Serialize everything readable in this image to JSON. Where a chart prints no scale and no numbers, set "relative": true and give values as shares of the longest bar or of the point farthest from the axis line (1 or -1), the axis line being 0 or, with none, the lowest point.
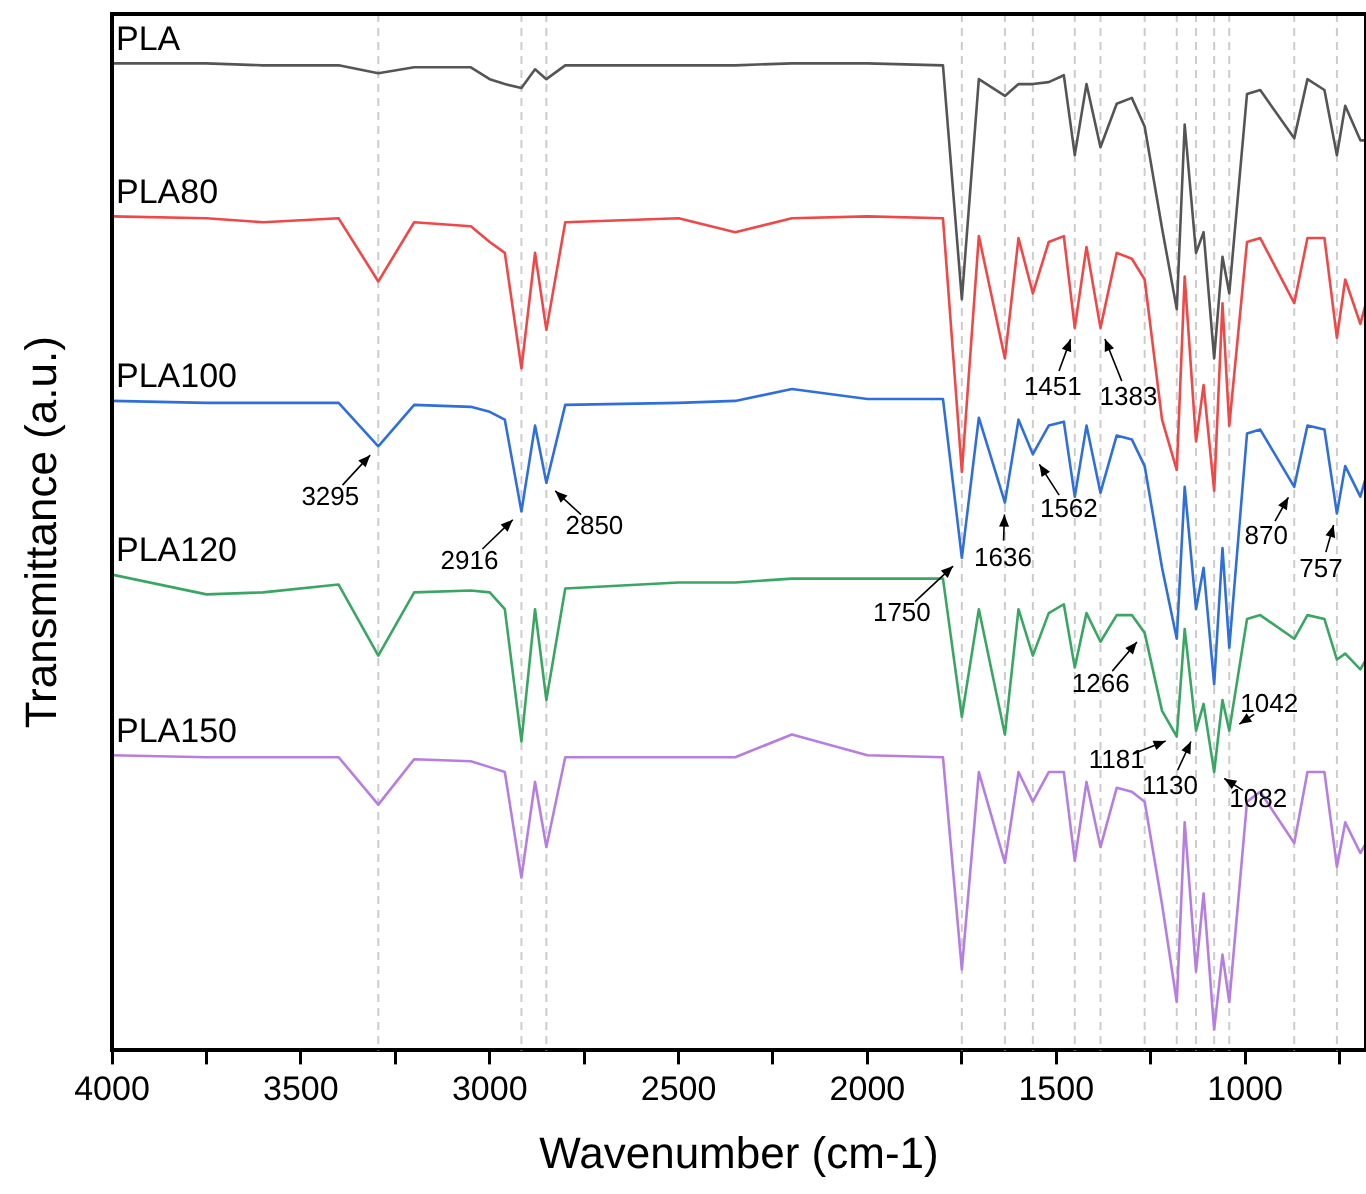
{
  "chart_data": {
    "type": "line",
    "xlabel": "Wavenumber (cm-1)",
    "ylabel": "Transmittance (a.u.)",
    "relative": true,
    "marker": "none",
    "line_style": "solid",
    "xlim": [
      4000,
      680
    ],
    "xticks": [
      4000,
      {
        "value": 3750,
        "label": null
      },
      3500,
      {
        "value": 3250,
        "label": null
      },
      3000,
      {
        "value": 2750,
        "label": null
      },
      2500,
      {
        "value": 2250,
        "label": null
      },
      2000,
      {
        "value": 1750,
        "label": null
      },
      1500,
      {
        "value": 1250,
        "label": null
      },
      1000,
      {
        "value": 750,
        "label": null
      }
    ],
    "x": [
      4000,
      3750,
      3600,
      3400,
      3295,
      3200,
      3050,
      3000,
      2960,
      2916,
      2880,
      2850,
      2800,
      2500,
      2350,
      2200,
      2000,
      1800,
      1750,
      1705,
      1636,
      1600,
      1562,
      1520,
      1480,
      1451,
      1420,
      1383,
      1340,
      1300,
      1266,
      1220,
      1181,
      1160,
      1130,
      1110,
      1082,
      1060,
      1042,
      995,
      960,
      870,
      835,
      790,
      757,
      735,
      695,
      680
    ],
    "series": [
      {
        "name": "PLA",
        "color": "#555555",
        "values": [
          1.0,
          1.0,
          0.998,
          0.998,
          0.99,
          0.996,
          0.996,
          0.984,
          0.979,
          0.975,
          0.994,
          0.984,
          0.998,
          0.998,
          0.998,
          1.0,
          1.0,
          0.998,
          0.761,
          0.984,
          0.967,
          0.979,
          0.979,
          0.981,
          0.988,
          0.907,
          0.979,
          0.915,
          0.959,
          0.965,
          0.936,
          0.833,
          0.751,
          0.938,
          0.808,
          0.829,
          0.701,
          0.804,
          0.767,
          0.969,
          0.973,
          0.924,
          0.984,
          0.973,
          0.907,
          0.957,
          0.922,
          0.922
        ]
      },
      {
        "name": "PLA80",
        "color": "#f04848",
        "values": [
          0.845,
          0.843,
          0.839,
          0.843,
          0.779,
          0.839,
          0.835,
          0.819,
          0.808,
          0.691,
          0.808,
          0.73,
          0.839,
          0.843,
          0.829,
          0.843,
          0.845,
          0.843,
          0.586,
          0.825,
          0.701,
          0.823,
          0.767,
          0.819,
          0.825,
          0.732,
          0.814,
          0.732,
          0.808,
          0.802,
          0.781,
          0.639,
          0.588,
          0.784,
          0.617,
          0.674,
          0.567,
          0.757,
          0.633,
          0.819,
          0.823,
          0.757,
          0.823,
          0.823,
          0.722,
          0.781,
          0.736,
          0.757
        ]
      },
      {
        "name": "PLA100",
        "color": "#2f6fdc",
        "values": [
          0.658,
          0.656,
          0.656,
          0.656,
          0.612,
          0.654,
          0.652,
          0.647,
          0.639,
          0.546,
          0.633,
          0.575,
          0.654,
          0.656,
          0.658,
          0.67,
          0.66,
          0.66,
          0.499,
          0.641,
          0.555,
          0.639,
          0.604,
          0.633,
          0.637,
          0.561,
          0.633,
          0.565,
          0.623,
          0.619,
          0.592,
          0.489,
          0.417,
          0.571,
          0.447,
          0.489,
          0.371,
          0.509,
          0.408,
          0.625,
          0.629,
          0.571,
          0.633,
          0.629,
          0.544,
          0.592,
          0.561,
          0.581
        ]
      },
      {
        "name": "PLA120",
        "color": "#3aa664",
        "values": [
          0.482,
          0.462,
          0.464,
          0.472,
          0.4,
          0.464,
          0.466,
          0.464,
          0.447,
          0.313,
          0.447,
          0.355,
          0.468,
          0.474,
          0.474,
          0.478,
          0.478,
          0.478,
          0.338,
          0.447,
          0.32,
          0.447,
          0.4,
          0.443,
          0.452,
          0.388,
          0.443,
          0.414,
          0.441,
          0.441,
          0.423,
          0.344,
          0.318,
          0.427,
          0.324,
          0.351,
          0.282,
          0.355,
          0.324,
          0.437,
          0.441,
          0.417,
          0.441,
          0.437,
          0.396,
          0.402,
          0.386,
          0.396
        ]
      },
      {
        "name": "PLA150",
        "color": "#b67ee0",
        "values": [
          0.299,
          0.297,
          0.297,
          0.297,
          0.249,
          0.295,
          0.293,
          0.287,
          0.282,
          0.175,
          0.272,
          0.206,
          0.297,
          0.297,
          0.297,
          0.32,
          0.299,
          0.297,
          0.082,
          0.282,
          0.19,
          0.282,
          0.252,
          0.282,
          0.282,
          0.192,
          0.272,
          0.206,
          0.266,
          0.262,
          0.252,
          0.148,
          0.049,
          0.231,
          0.08,
          0.159,
          0.021,
          0.097,
          0.049,
          0.252,
          0.262,
          0.21,
          0.282,
          0.282,
          0.186,
          0.231,
          0.2,
          0.21
        ]
      }
    ],
    "ref_lines": [
      {
        "axis": "x",
        "value": 3295,
        "color": "#cccccc",
        "line_style": "dashed"
      },
      {
        "axis": "x",
        "value": 2916,
        "color": "#cccccc",
        "line_style": "dashed"
      },
      {
        "axis": "x",
        "value": 2850,
        "color": "#cccccc",
        "line_style": "dashed"
      },
      {
        "axis": "x",
        "value": 1750,
        "color": "#cccccc",
        "line_style": "dashed"
      },
      {
        "axis": "x",
        "value": 1636,
        "color": "#cccccc",
        "line_style": "dashed"
      },
      {
        "axis": "x",
        "value": 1562,
        "color": "#cccccc",
        "line_style": "dashed"
      },
      {
        "axis": "x",
        "value": 1451,
        "color": "#cccccc",
        "line_style": "dashed"
      },
      {
        "axis": "x",
        "value": 1383,
        "color": "#cccccc",
        "line_style": "dashed"
      },
      {
        "axis": "x",
        "value": 1266,
        "color": "#cccccc",
        "line_style": "dashed"
      },
      {
        "axis": "x",
        "value": 1181,
        "color": "#cccccc",
        "line_style": "dashed"
      },
      {
        "axis": "x",
        "value": 1130,
        "color": "#cccccc",
        "line_style": "dashed"
      },
      {
        "axis": "x",
        "value": 1082,
        "color": "#cccccc",
        "line_style": "dashed"
      },
      {
        "axis": "x",
        "value": 1042,
        "color": "#cccccc",
        "line_style": "dashed"
      },
      {
        "axis": "x",
        "value": 870,
        "color": "#cccccc",
        "line_style": "dashed"
      },
      {
        "axis": "x",
        "value": 757,
        "color": "#cccccc",
        "line_style": "dashed"
      }
    ],
    "annotations": [
      {
        "text": "3295",
        "x": 3295,
        "y": 0.612
      },
      {
        "text": "2916",
        "x": 2916,
        "y": 0.546
      },
      {
        "text": "2850",
        "x": 2850,
        "y": 0.575
      },
      {
        "text": "1750",
        "x": 1750,
        "y": 0.499
      },
      {
        "text": "1636",
        "x": 1636,
        "y": 0.555
      },
      {
        "text": "1562",
        "x": 1562,
        "y": 0.604
      },
      {
        "text": "1451",
        "x": 1451,
        "y": 0.732
      },
      {
        "text": "1383",
        "x": 1383,
        "y": 0.732
      },
      {
        "text": "870",
        "x": 870,
        "y": 0.571
      },
      {
        "text": "757",
        "x": 757,
        "y": 0.544
      },
      {
        "text": "1266",
        "x": 1266,
        "y": 0.423
      },
      {
        "text": "1181",
        "x": 1181,
        "y": 0.318
      },
      {
        "text": "1130",
        "x": 1130,
        "y": 0.324
      },
      {
        "text": "1082",
        "x": 1082,
        "y": 0.282
      },
      {
        "text": "1042",
        "x": 1042,
        "y": 0.324
      }
    ]
  }
}
